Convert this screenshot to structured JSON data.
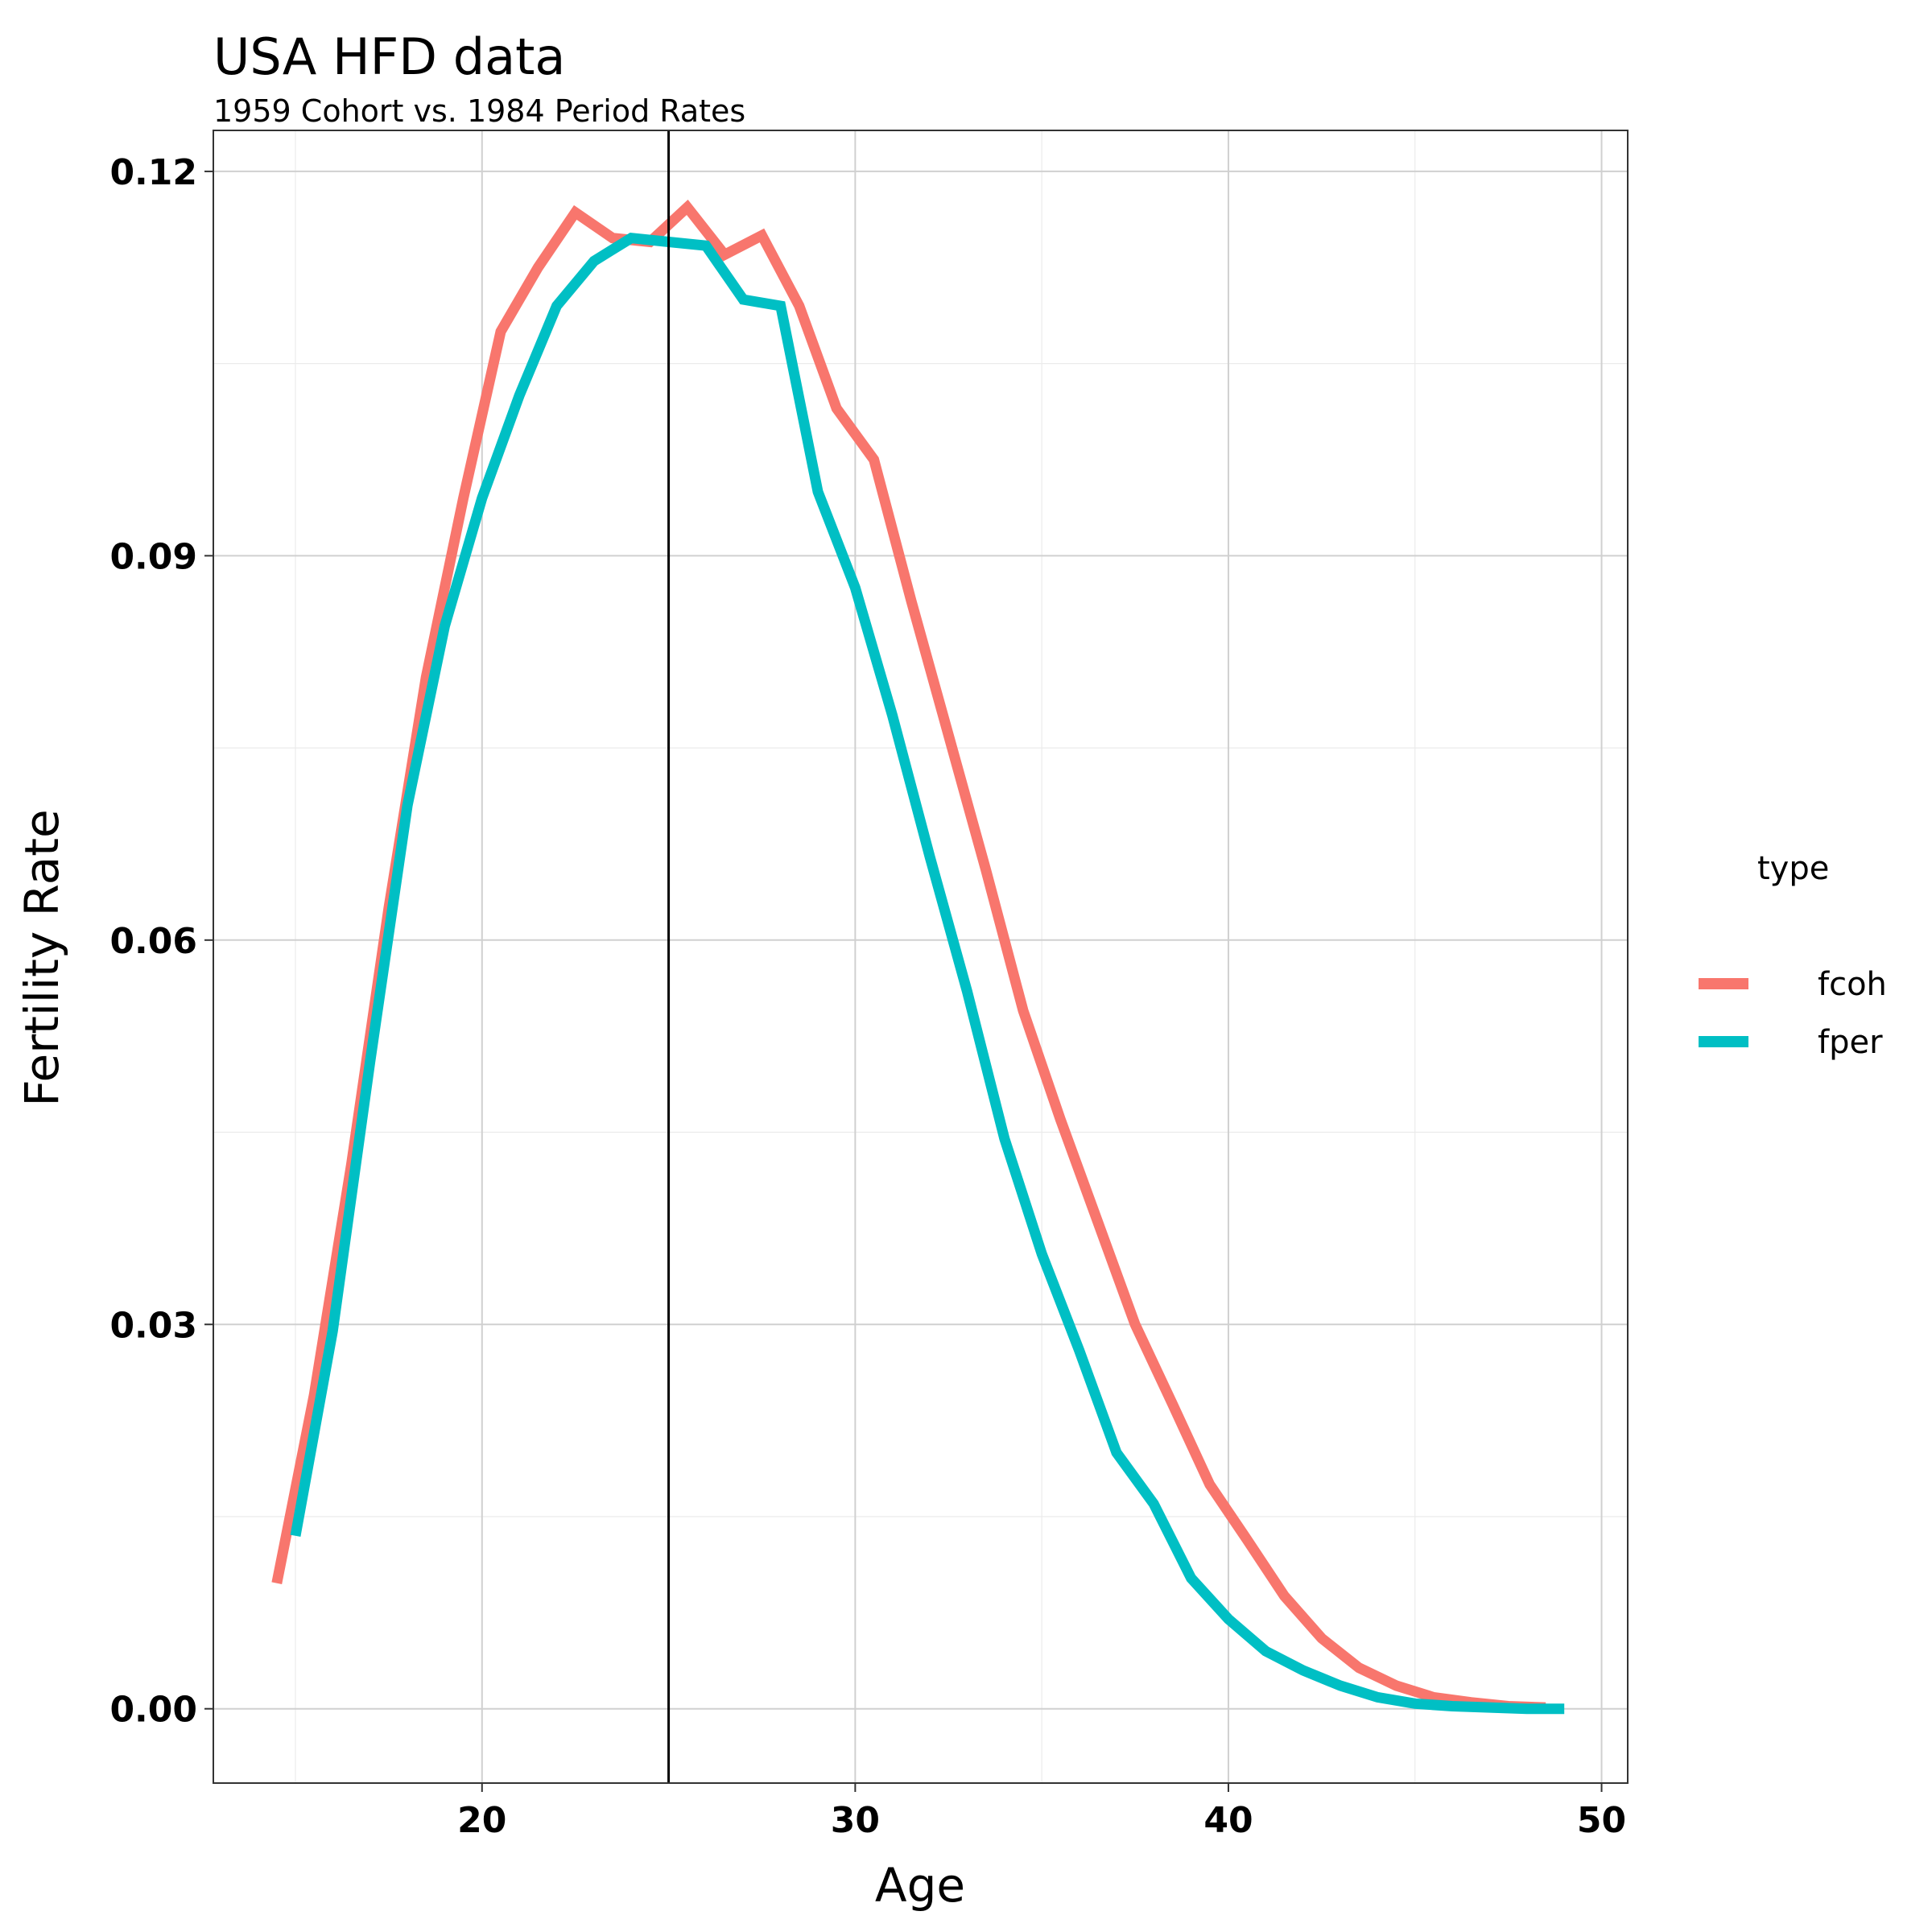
{
  "chart_data": {
    "type": "line",
    "title": "USA HFD data",
    "subtitle": "1959 Cohort vs. 1984 Period Rates",
    "xlabel": "Age",
    "ylabel": "Fertility Rate",
    "xlim": [
      12.8,
      50.7
    ],
    "ylim": [
      -0.0058,
      0.1232
    ],
    "x_ticks": [
      20,
      30,
      40,
      50
    ],
    "x_tick_labels": [
      "20",
      "30",
      "40",
      "50"
    ],
    "y_ticks": [
      0,
      0.03,
      0.06,
      0.09,
      0.12
    ],
    "y_tick_labels": [
      "0.00",
      "0.03",
      "0.06",
      "0.09",
      "0.12"
    ],
    "vline_x": 25,
    "grid": true,
    "legend": {
      "title": "type",
      "position": "right"
    },
    "series": [
      {
        "name": "fcoh",
        "color": "#F8766D",
        "x": [
          14.5,
          15.5,
          16.5,
          17.5,
          18.5,
          19.5,
          20.5,
          21.5,
          22.5,
          23.5,
          24.5,
          25.5,
          26.5,
          27.5,
          28.5,
          29.5,
          30.5,
          31.5,
          32.5,
          33.5,
          34.5,
          35.5,
          36.5,
          37.5,
          38.5,
          39.5,
          40.5,
          41.5,
          42.5,
          43.5,
          44.5,
          45.5,
          46.5,
          47.5,
          48.5
        ],
        "values": [
          0.0098,
          0.0245,
          0.0425,
          0.0625,
          0.0805,
          0.0945,
          0.1075,
          0.1125,
          0.1168,
          0.1148,
          0.1145,
          0.1172,
          0.1135,
          0.115,
          0.1095,
          0.1015,
          0.0975,
          0.0865,
          0.076,
          0.0655,
          0.0545,
          0.046,
          0.038,
          0.03,
          0.0238,
          0.0175,
          0.0132,
          0.0088,
          0.0055,
          0.0032,
          0.0018,
          0.0009,
          0.0005,
          0.0002,
          0.0001
        ]
      },
      {
        "name": "fper",
        "color": "#00BFC4",
        "x": [
          15,
          16,
          17,
          18,
          19,
          20,
          21,
          22,
          23,
          24,
          25,
          26,
          27,
          28,
          29,
          30,
          31,
          32,
          33,
          34,
          35,
          36,
          37,
          38,
          39,
          40,
          41,
          42,
          43,
          44,
          45,
          46,
          47,
          48,
          49
        ],
        "values": [
          0.0135,
          0.0295,
          0.0505,
          0.0705,
          0.0845,
          0.0945,
          0.1025,
          0.1095,
          0.113,
          0.1148,
          0.1145,
          0.1142,
          0.11,
          0.1095,
          0.095,
          0.0875,
          0.0775,
          0.0665,
          0.056,
          0.0445,
          0.0355,
          0.028,
          0.02,
          0.016,
          0.0102,
          0.007,
          0.0045,
          0.003,
          0.0018,
          0.0009,
          0.0004,
          0.0002,
          0.0001,
          0.0,
          0.0
        ]
      }
    ]
  }
}
